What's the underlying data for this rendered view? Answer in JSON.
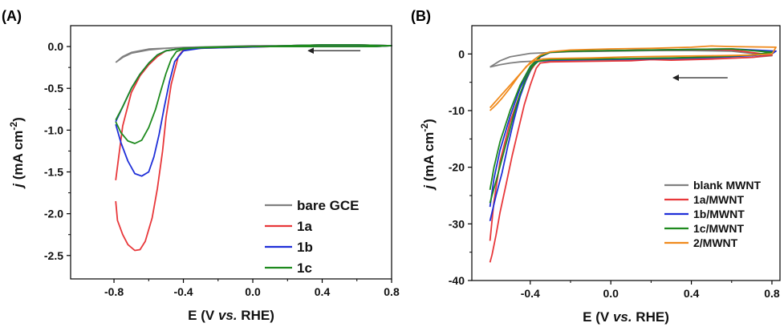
{
  "chart_data": [
    {
      "panel": "(A)",
      "type": "line",
      "xlabel_main": "E (V ",
      "xlabel_italic": "vs.",
      "xlabel_tail": " RHE)",
      "ylabel_j": "j",
      "ylabel_unit": " (mA cm",
      "ylabel_exp": "-2",
      "ylabel_close": ")",
      "xlim": [
        -1.05,
        0.8
      ],
      "ylim": [
        -2.78,
        0.25
      ],
      "xticks": [
        -0.8,
        -0.4,
        0.0,
        0.4,
        0.8
      ],
      "xtick_labels": [
        "-0.8",
        "-0.4",
        "0.0",
        "0.4",
        "0.8"
      ],
      "yticks": [
        0.0,
        -0.5,
        -1.0,
        -1.5,
        -2.0,
        -2.5
      ],
      "ytick_labels": [
        "0.0",
        "-0.5",
        "-1.0",
        "-1.5",
        "-2.0",
        "-2.5"
      ],
      "arrow": {
        "from": [
          0.62,
          -0.05
        ],
        "to": [
          0.32,
          -0.05
        ]
      },
      "legend_position": "bottom-right",
      "series": [
        {
          "name": "bare GCE",
          "color": "#808080",
          "x": [
            -0.79,
            -0.75,
            -0.7,
            -0.6,
            -0.5,
            -0.4,
            -0.2,
            0.0,
            0.2,
            0.4,
            0.6,
            0.8,
            0.6,
            0.4,
            0.2,
            0.0,
            -0.2,
            -0.4,
            -0.6,
            -0.7,
            -0.75,
            -0.79
          ],
          "y": [
            -0.19,
            -0.13,
            -0.08,
            -0.04,
            -0.02,
            -0.01,
            0.0,
            0.0,
            0.0,
            0.0,
            0.0,
            0.01,
            0.02,
            0.02,
            0.01,
            0.01,
            0.0,
            -0.01,
            -0.03,
            -0.07,
            -0.12,
            -0.19
          ]
        },
        {
          "name": "1a",
          "color": "#e8373a",
          "x": [
            -0.79,
            -0.78,
            -0.75,
            -0.72,
            -0.68,
            -0.65,
            -0.62,
            -0.58,
            -0.55,
            -0.52,
            -0.5,
            -0.47,
            -0.43,
            -0.4,
            -0.3,
            -0.1,
            0.1,
            0.3,
            0.5,
            0.7,
            0.8,
            0.6,
            0.4,
            0.2,
            0.0,
            -0.2,
            -0.4,
            -0.5,
            -0.55,
            -0.6,
            -0.65,
            -0.7,
            -0.75,
            -0.79
          ],
          "y": [
            -1.85,
            -2.08,
            -2.25,
            -2.37,
            -2.44,
            -2.43,
            -2.33,
            -2.05,
            -1.7,
            -1.25,
            -0.85,
            -0.45,
            -0.12,
            -0.04,
            -0.02,
            -0.01,
            0.0,
            0.0,
            0.0,
            0.0,
            0.01,
            0.02,
            0.02,
            0.01,
            0.0,
            -0.01,
            -0.02,
            -0.05,
            -0.12,
            -0.22,
            -0.35,
            -0.55,
            -0.95,
            -1.6
          ]
        },
        {
          "name": "1b",
          "color": "#1f2fd8",
          "x": [
            -0.79,
            -0.76,
            -0.72,
            -0.68,
            -0.64,
            -0.6,
            -0.57,
            -0.54,
            -0.51,
            -0.48,
            -0.45,
            -0.4,
            -0.3,
            -0.1,
            0.1,
            0.3,
            0.5,
            0.7,
            0.8,
            0.6,
            0.4,
            0.2,
            0.0,
            -0.2,
            -0.4,
            -0.5,
            -0.55,
            -0.6,
            -0.65,
            -0.7,
            -0.75,
            -0.79
          ],
          "y": [
            -0.93,
            -1.15,
            -1.37,
            -1.52,
            -1.55,
            -1.5,
            -1.32,
            -1.05,
            -0.72,
            -0.42,
            -0.18,
            -0.05,
            -0.02,
            -0.01,
            0.0,
            0.0,
            0.0,
            0.0,
            0.01,
            0.02,
            0.02,
            0.01,
            0.0,
            -0.01,
            -0.02,
            -0.05,
            -0.1,
            -0.2,
            -0.33,
            -0.5,
            -0.72,
            -0.9
          ]
        },
        {
          "name": "1c",
          "color": "#1e8a1e",
          "x": [
            -0.79,
            -0.76,
            -0.72,
            -0.68,
            -0.64,
            -0.6,
            -0.56,
            -0.53,
            -0.5,
            -0.47,
            -0.44,
            -0.4,
            -0.35,
            -0.3,
            -0.1,
            0.1,
            0.3,
            0.5,
            0.7,
            0.8,
            0.6,
            0.4,
            0.2,
            0.0,
            -0.2,
            -0.4,
            -0.5,
            -0.55,
            -0.6,
            -0.65,
            -0.7,
            -0.75,
            -0.79
          ],
          "y": [
            -0.9,
            -1.03,
            -1.13,
            -1.16,
            -1.12,
            -0.97,
            -0.75,
            -0.53,
            -0.32,
            -0.15,
            -0.06,
            -0.03,
            -0.02,
            -0.01,
            0.0,
            0.0,
            0.0,
            0.0,
            0.0,
            0.01,
            0.02,
            0.02,
            0.01,
            0.0,
            -0.01,
            -0.02,
            -0.05,
            -0.1,
            -0.2,
            -0.33,
            -0.5,
            -0.72,
            -0.88
          ]
        }
      ]
    },
    {
      "panel": "(B)",
      "type": "line",
      "xlabel_main": "E (V ",
      "xlabel_italic": "vs.",
      "xlabel_tail": " RHE)",
      "ylabel_j": "j",
      "ylabel_unit": " (mA cm",
      "ylabel_exp": "-2",
      "ylabel_close": ")",
      "xlim": [
        -0.69,
        0.84
      ],
      "ylim": [
        -40,
        5
      ],
      "xticks": [
        -0.4,
        0.0,
        0.4,
        0.8
      ],
      "xtick_labels": [
        "-0.4",
        "0.0",
        "0.4",
        "0.8"
      ],
      "yticks": [
        0,
        -10,
        -20,
        -30,
        -40
      ],
      "ytick_labels": [
        "0",
        "-10",
        "-20",
        "-30",
        "-40"
      ],
      "arrow": {
        "from": [
          0.58,
          -4.2
        ],
        "to": [
          0.31,
          -4.2
        ]
      },
      "legend_position": "bottom-right",
      "series": [
        {
          "name": "blank MWNT",
          "color": "#808080",
          "x": [
            -0.6,
            -0.55,
            -0.5,
            -0.45,
            -0.4,
            -0.3,
            -0.1,
            0.1,
            0.3,
            0.5,
            0.7,
            0.8,
            0.6,
            0.4,
            0.2,
            0.0,
            -0.2,
            -0.4,
            -0.5,
            -0.55,
            -0.6
          ],
          "y": [
            -2.3,
            -1.9,
            -1.6,
            -1.4,
            -1.3,
            -1.2,
            -1.1,
            -1.0,
            -0.9,
            -0.8,
            -0.6,
            -0.3,
            0.5,
            0.6,
            0.6,
            0.5,
            0.4,
            0.1,
            -0.5,
            -1.2,
            -2.3
          ]
        },
        {
          "name": "1a/MWNT",
          "color": "#e8373a",
          "x": [
            -0.6,
            -0.59,
            -0.57,
            -0.55,
            -0.52,
            -0.49,
            -0.46,
            -0.43,
            -0.4,
            -0.37,
            -0.35,
            -0.3,
            -0.1,
            0.1,
            0.2,
            0.3,
            0.5,
            0.7,
            0.8,
            0.6,
            0.4,
            0.2,
            0.0,
            -0.2,
            -0.3,
            -0.35,
            -0.4,
            -0.45,
            -0.5,
            -0.55,
            -0.58,
            -0.6
          ],
          "y": [
            -36.8,
            -35.5,
            -32.0,
            -28.0,
            -23.0,
            -18.0,
            -13.5,
            -9.0,
            -5.5,
            -2.5,
            -1.6,
            -1.4,
            -1.3,
            -1.2,
            -1.0,
            -1.1,
            -0.9,
            -0.6,
            -0.2,
            0.7,
            0.8,
            0.7,
            0.6,
            0.5,
            0.3,
            -0.5,
            -3.0,
            -7.0,
            -12.0,
            -19.0,
            -26.0,
            -33.0
          ]
        },
        {
          "name": "1b/MWNT",
          "color": "#1f2fd8",
          "x": [
            -0.6,
            -0.59,
            -0.57,
            -0.54,
            -0.51,
            -0.48,
            -0.45,
            -0.42,
            -0.39,
            -0.37,
            -0.34,
            -0.3,
            -0.1,
            0.1,
            0.3,
            0.5,
            0.7,
            0.8,
            0.82,
            0.6,
            0.4,
            0.2,
            0.0,
            -0.2,
            -0.3,
            -0.35,
            -0.4,
            -0.45,
            -0.5,
            -0.55,
            -0.58,
            -0.6
          ],
          "y": [
            -29.5,
            -28.0,
            -25.0,
            -21.0,
            -16.0,
            -11.5,
            -7.5,
            -4.5,
            -2.2,
            -1.4,
            -1.2,
            -1.1,
            -1.0,
            -0.9,
            -0.8,
            -0.6,
            -0.3,
            0.0,
            0.5,
            0.9,
            0.8,
            0.7,
            0.6,
            0.5,
            0.3,
            -0.5,
            -2.5,
            -6.0,
            -11.0,
            -17.0,
            -22.0,
            -27.0
          ]
        },
        {
          "name": "1c/MWNT",
          "color": "#1e8a1e",
          "x": [
            -0.6,
            -0.59,
            -0.57,
            -0.54,
            -0.51,
            -0.48,
            -0.45,
            -0.42,
            -0.39,
            -0.36,
            -0.33,
            -0.3,
            -0.1,
            0.1,
            0.3,
            0.5,
            0.7,
            0.8,
            0.6,
            0.4,
            0.2,
            0.0,
            -0.2,
            -0.3,
            -0.35,
            -0.4,
            -0.45,
            -0.5,
            -0.55,
            -0.58,
            -0.6
          ],
          "y": [
            -26.3,
            -25.0,
            -22.5,
            -18.5,
            -14.5,
            -10.5,
            -7.0,
            -4.2,
            -2.2,
            -1.3,
            -1.1,
            -1.0,
            -0.9,
            -0.8,
            -0.7,
            -0.5,
            -0.2,
            0.3,
            0.9,
            0.8,
            0.7,
            0.6,
            0.5,
            0.3,
            -0.4,
            -2.2,
            -5.5,
            -10.0,
            -15.5,
            -20.0,
            -24.0
          ]
        },
        {
          "name": "2/MWNT",
          "color": "#f08a1c",
          "x": [
            -0.6,
            -0.57,
            -0.54,
            -0.5,
            -0.46,
            -0.42,
            -0.38,
            -0.34,
            -0.3,
            -0.1,
            0.1,
            0.3,
            0.5,
            0.7,
            0.8,
            0.82,
            0.6,
            0.5,
            0.4,
            0.2,
            0.0,
            -0.2,
            -0.3,
            -0.35,
            -0.4,
            -0.45,
            -0.5,
            -0.55,
            -0.6
          ],
          "y": [
            -10.0,
            -9.0,
            -7.8,
            -6.0,
            -4.0,
            -2.2,
            -1.2,
            -0.9,
            -0.8,
            -0.7,
            -0.5,
            -0.4,
            -0.3,
            -0.2,
            0.0,
            1.2,
            1.3,
            1.4,
            1.2,
            1.0,
            0.9,
            0.7,
            0.4,
            -0.2,
            -1.5,
            -3.5,
            -5.5,
            -7.5,
            -9.5
          ]
        }
      ]
    }
  ]
}
